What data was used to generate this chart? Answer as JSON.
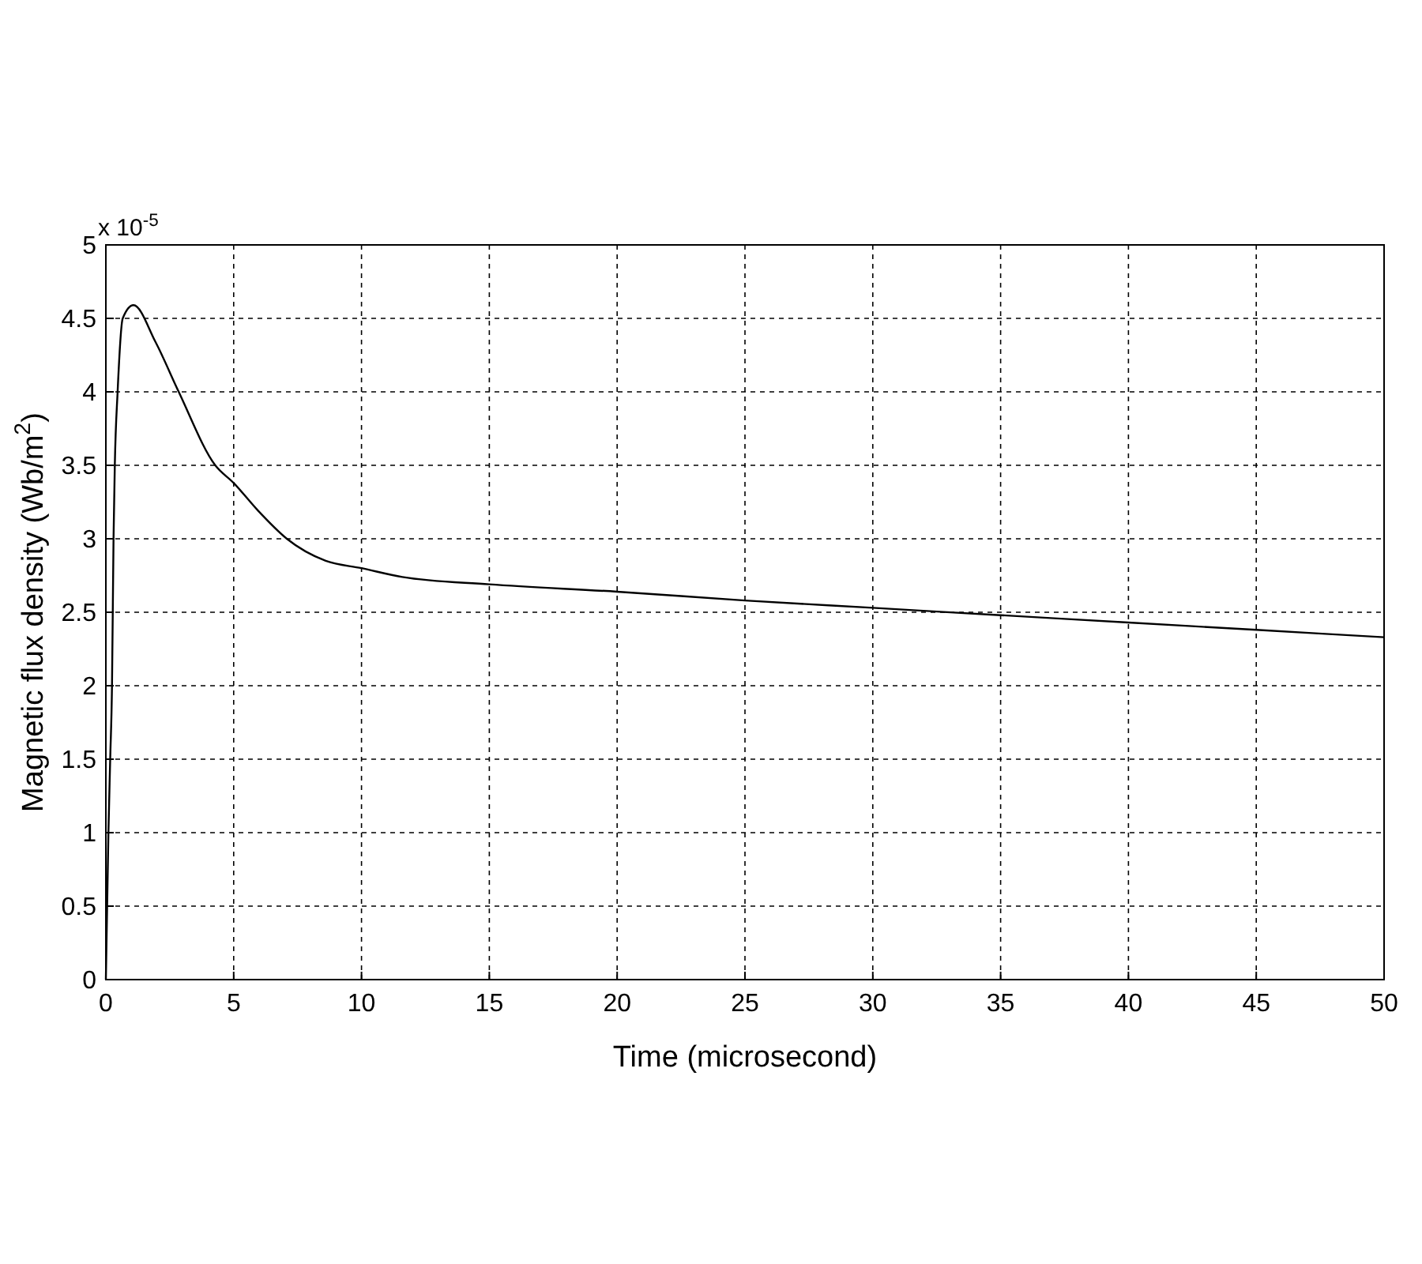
{
  "chart_data": {
    "type": "line",
    "xlabel": "Time (microsecond)",
    "ylabel": "Magnetic flux density (Wb/m$^{2}$)",
    "annotations": [
      "x 10$^{-5}$"
    ],
    "x": [
      0,
      0.1,
      0.17,
      0.24,
      0.3,
      0.35,
      0.46,
      0.66,
      1.08,
      1.94,
      2.85,
      4.28,
      5,
      5.96,
      7.08,
      8.6,
      10,
      11.6,
      15,
      20,
      25,
      30,
      35,
      40,
      45,
      50
    ],
    "series": [
      {
        "color": "#000000",
        "values": [
          0,
          1.0,
          1.5,
          2.0,
          3.0,
          3.5,
          4.0,
          4.5,
          4.59,
          4.34,
          4.0,
          3.5,
          3.38,
          3.19,
          3.0,
          2.85,
          2.8,
          2.74,
          2.69,
          2.64,
          2.58,
          2.53,
          2.48,
          2.43,
          2.38,
          2.33
        ]
      }
    ],
    "xlim": [
      0,
      50
    ],
    "xticks": [
      0,
      5,
      10,
      15,
      20,
      25,
      30,
      35,
      40,
      45,
      50
    ],
    "ylim": [
      0,
      5
    ],
    "yticks": [
      0,
      0.5,
      1,
      1.5,
      2,
      2.5,
      3,
      3.5,
      4,
      4.5,
      5
    ],
    "grid": true,
    "marker": "none",
    "line_style": "solid"
  }
}
